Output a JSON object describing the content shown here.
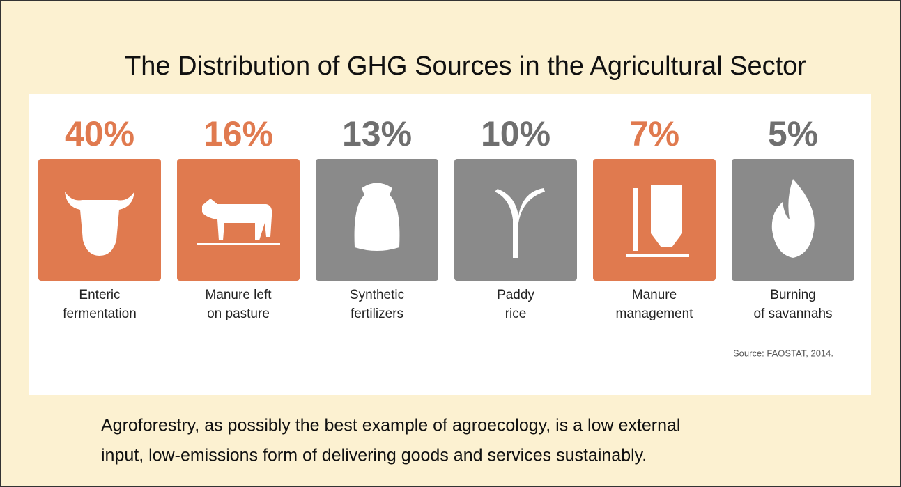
{
  "title": "The Distribution of GHG Sources in the Agricultural Sector",
  "items": [
    {
      "value": "40%",
      "label": [
        "Enteric",
        "fermentation"
      ],
      "color": "#e07a4f"
    },
    {
      "value": "16%",
      "label": [
        "Manure left",
        "on pasture"
      ],
      "color": "#e07a4f"
    },
    {
      "value": "13%",
      "label": [
        "Synthetic",
        "fertilizers"
      ],
      "color": "#8a8a8a"
    },
    {
      "value": "10%",
      "label": [
        "Paddy",
        "rice"
      ],
      "color": "#8a8a8a"
    },
    {
      "value": "7%",
      "label": [
        "Manure",
        "management"
      ],
      "color": "#e07a4f"
    },
    {
      "value": "5%",
      "label": [
        "Burning",
        "of savannahs"
      ],
      "color": "#8a8a8a"
    }
  ],
  "source": "Source: FAOSTAT, 2014.",
  "caption": [
    "Agroforestry, as possibly the best example of agroecology, is a low external",
    "input, low-emissions form of delivering goods and services sustainably."
  ]
}
